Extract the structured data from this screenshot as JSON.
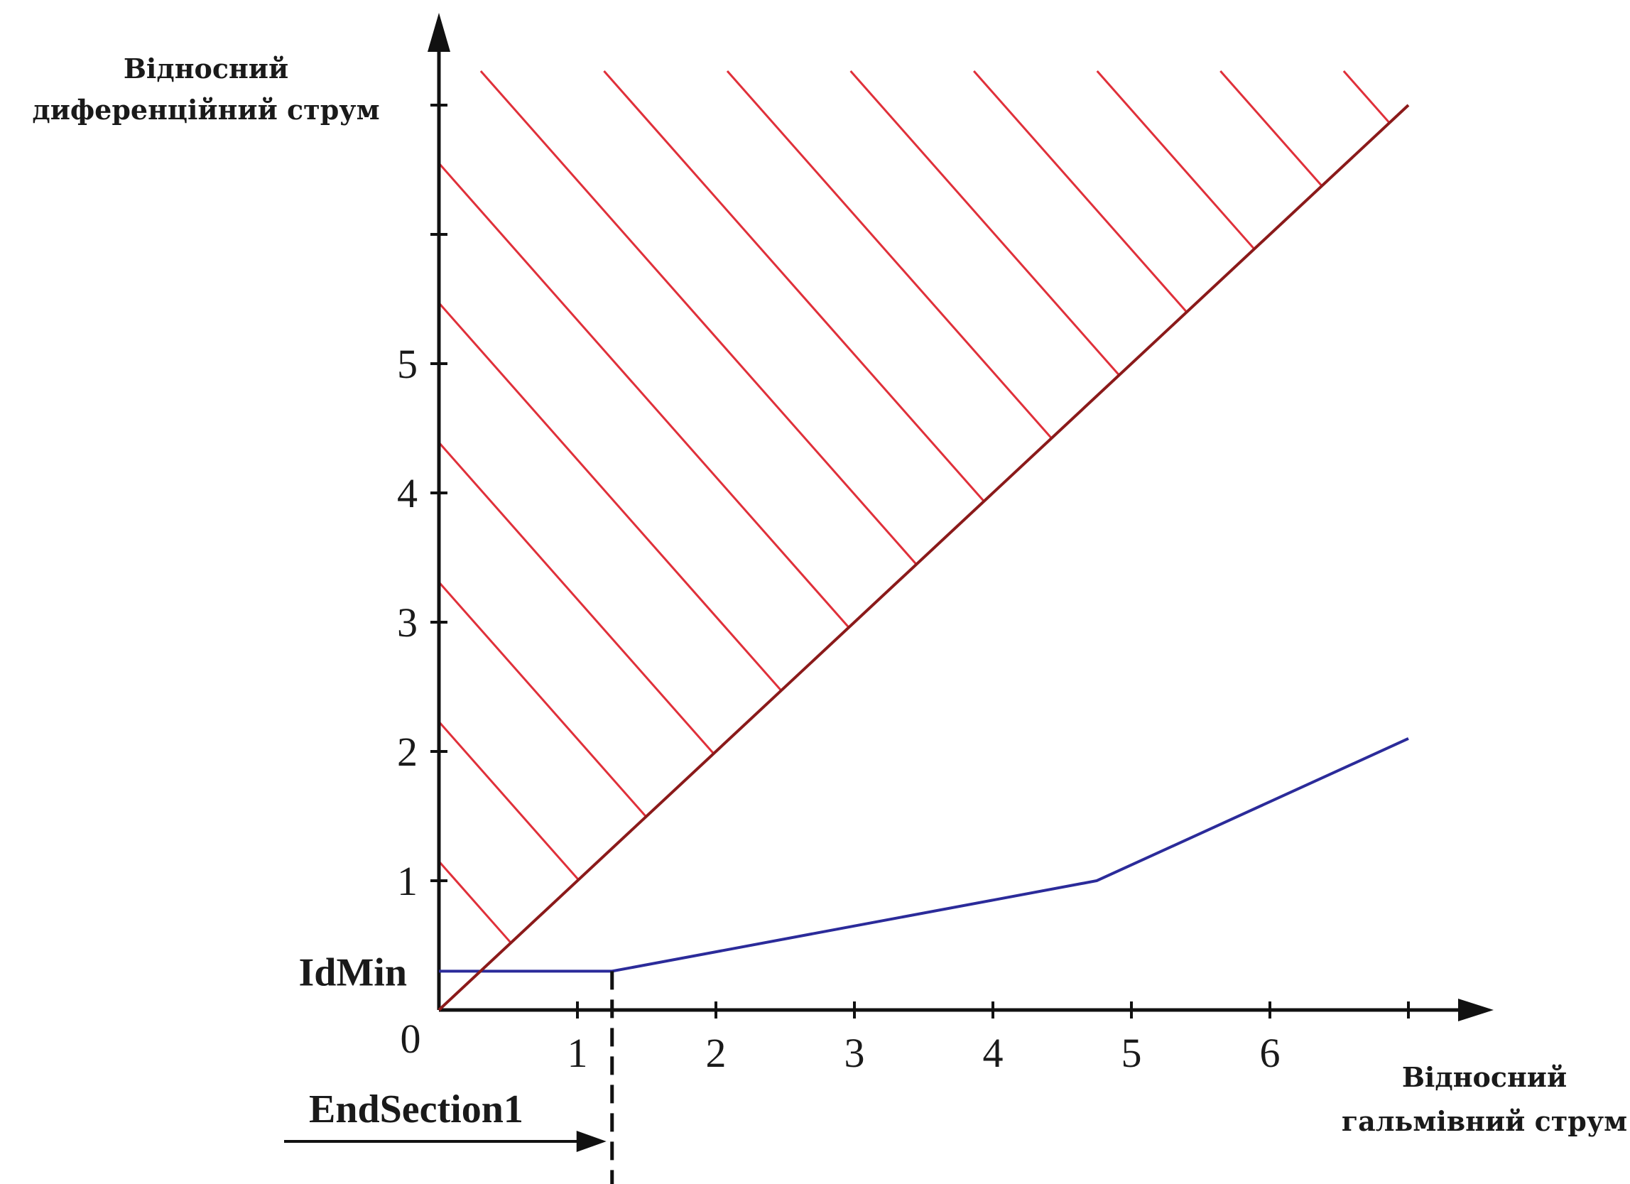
{
  "chart_data": {
    "type": "line",
    "xlabel": [
      "Відносний",
      "гальмівний струм"
    ],
    "ylabel": [
      "Відносний",
      "диференційний струм"
    ],
    "xlim": [
      0,
      7
    ],
    "ylim": [
      0,
      7
    ],
    "x_ticks": [
      1,
      2,
      3,
      4,
      5,
      6,
      7
    ],
    "x_tick_labels": [
      "1",
      "2",
      "3",
      "4",
      "5",
      "6"
    ],
    "y_ticks": [
      1,
      2,
      3,
      4,
      5,
      6,
      7
    ],
    "y_tick_labels": [
      "1",
      "2",
      "3",
      "4",
      "5"
    ],
    "origin_label": "0",
    "series": [
      {
        "color": "#2b2b9a",
        "x": [
          0,
          1.25,
          4.75,
          7
        ],
        "y": [
          0.3,
          0.3,
          1.0,
          2.1
        ]
      },
      {
        "color": "#8b1a1a",
        "x": [
          0,
          7
        ],
        "y": [
          0,
          7.0
        ]
      }
    ],
    "hatch": {
      "color": "#e0303a",
      "region": "above-diagonal"
    },
    "annotations": [
      {
        "label": "IdMin",
        "y": 0.3
      },
      {
        "label": "EndSection1",
        "x": 1.25
      }
    ],
    "grid": false,
    "legend": "none"
  }
}
